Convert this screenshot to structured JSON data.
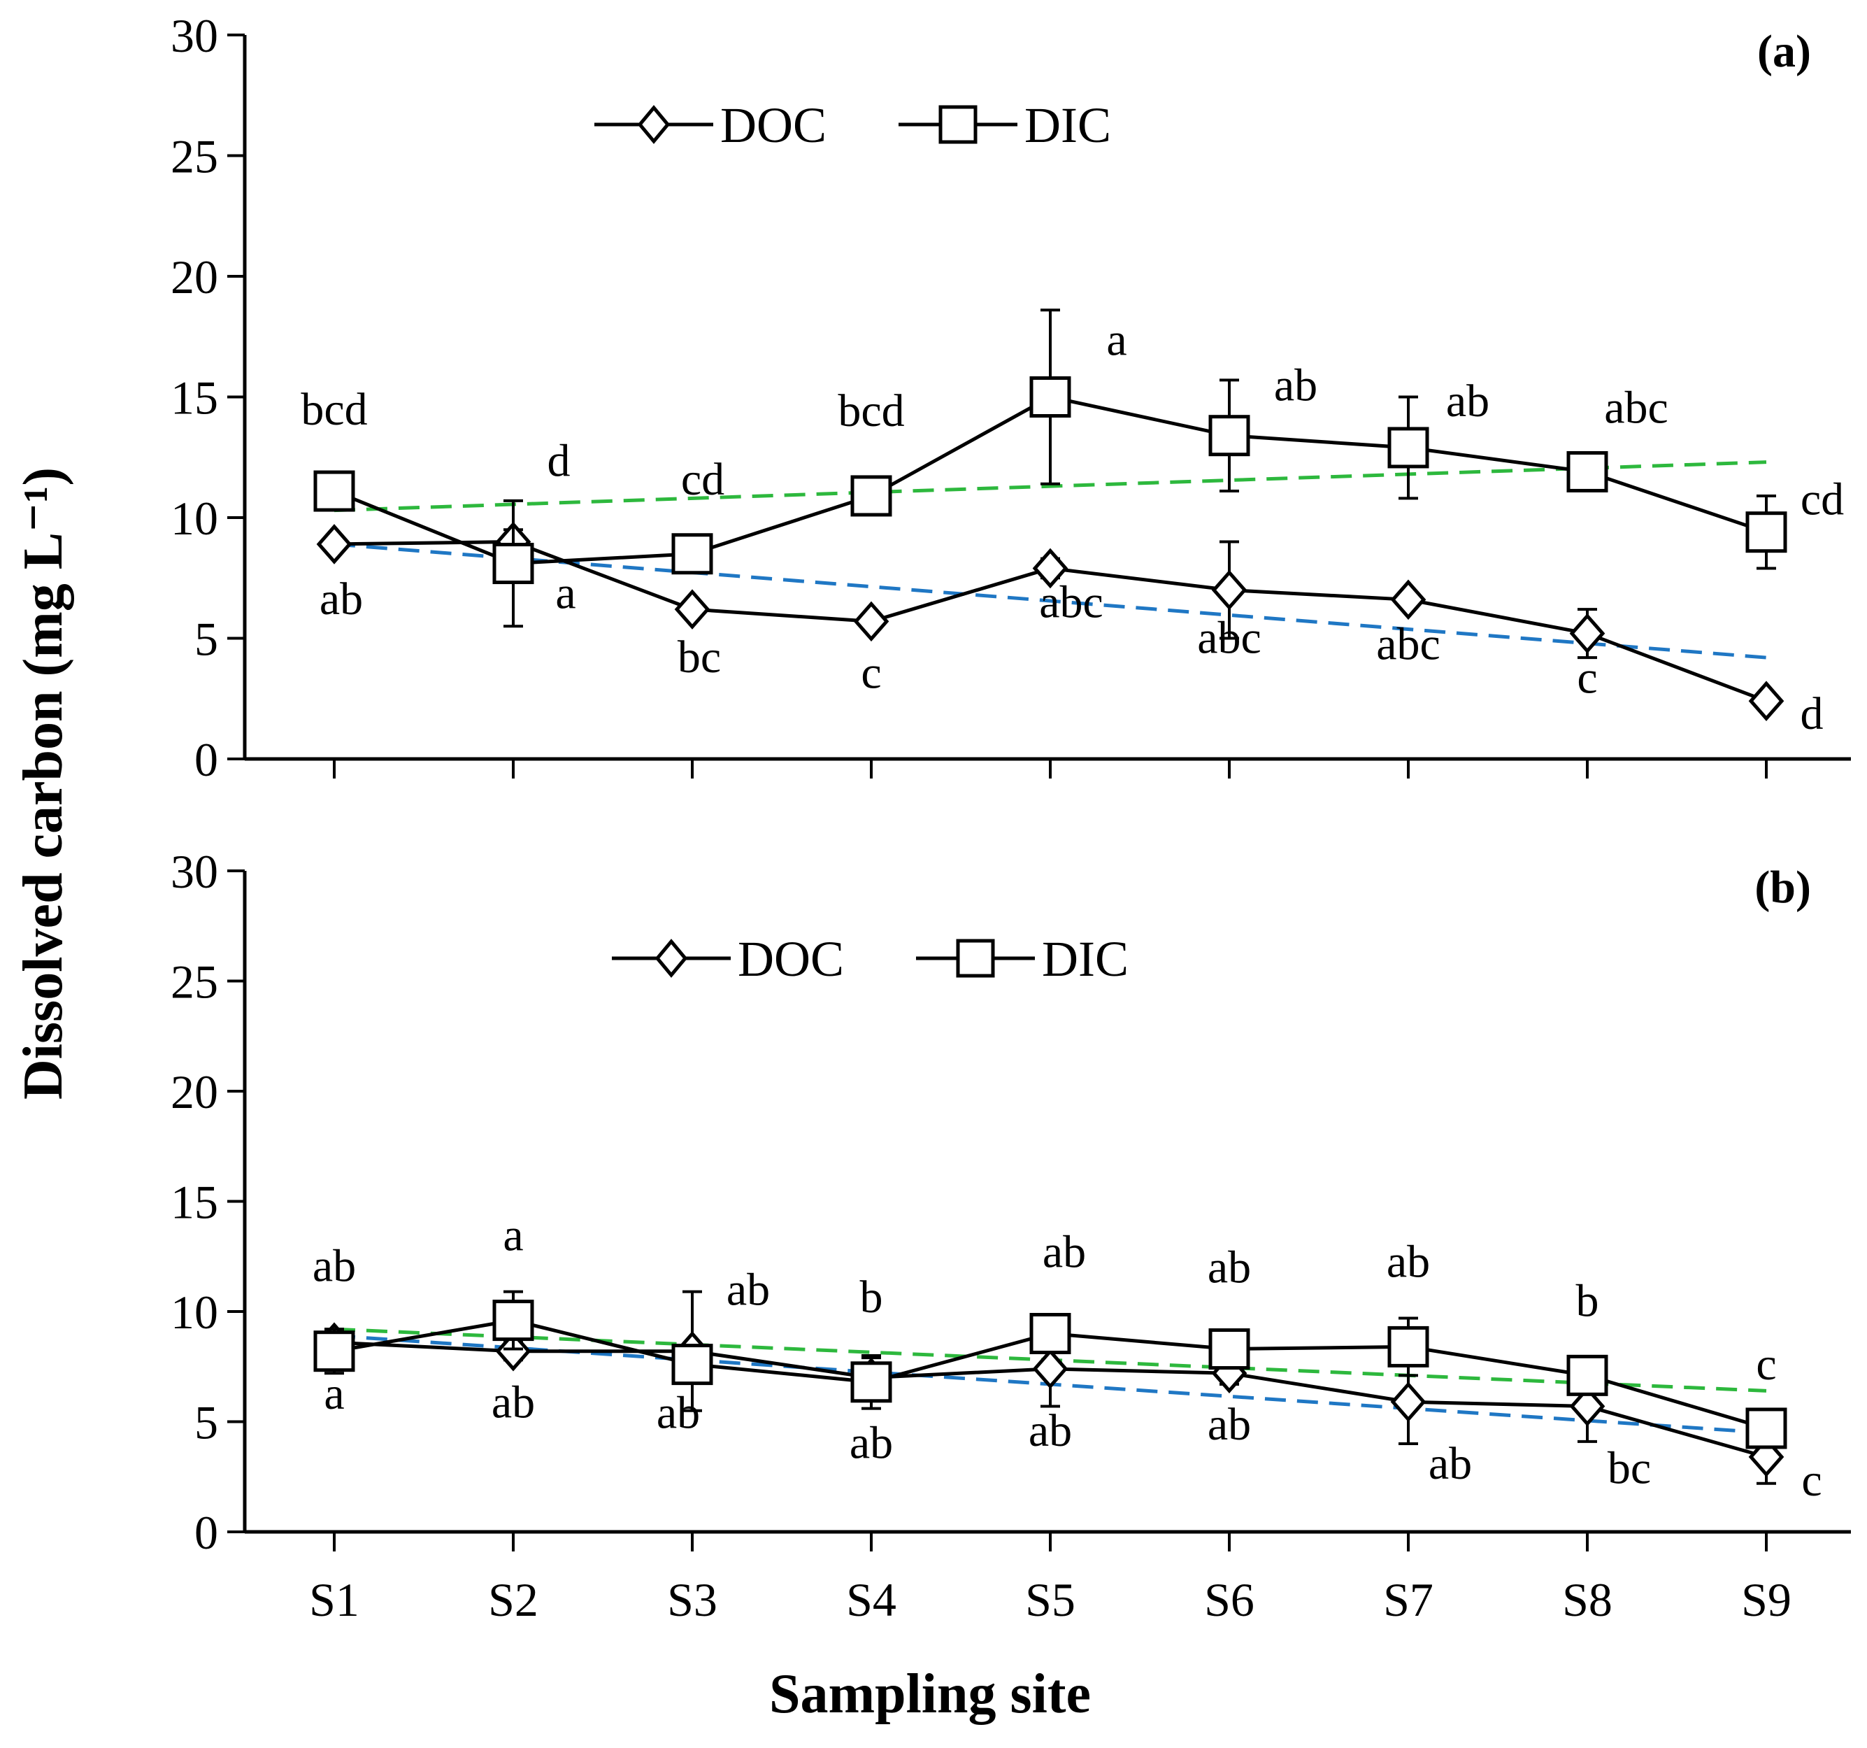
{
  "ylabel": "Dissolved carbon  (mg L⁻¹)",
  "xlabel": "Sampling site",
  "chart_data": [
    {
      "type": "line",
      "panel_label": "(a)",
      "categories": [
        "S1",
        "S2",
        "S3",
        "S4",
        "S5",
        "S6",
        "S7",
        "S8",
        "S9"
      ],
      "ylim": [
        0,
        30
      ],
      "yticks": [
        0,
        5,
        10,
        15,
        20,
        25,
        30
      ],
      "legend": [
        "DOC",
        "DIC"
      ],
      "series": [
        {
          "name": "DOC",
          "marker": "diamond",
          "values": [
            8.9,
            9.0,
            6.2,
            5.7,
            7.9,
            7.0,
            6.6,
            5.2,
            2.4
          ],
          "errors": [
            0.3,
            0.5,
            0.3,
            0.3,
            0.4,
            2.0,
            0.3,
            1.0,
            0.3
          ],
          "letters": [
            "ab",
            "a",
            "bc",
            "c",
            "abc",
            "abc",
            "abc",
            "c",
            "d"
          ],
          "trendline": {
            "color": "#1f77c4",
            "start": 8.9,
            "end": 4.2
          }
        },
        {
          "name": "DIC",
          "marker": "square",
          "values": [
            11.1,
            8.1,
            8.5,
            10.9,
            15.0,
            13.4,
            12.9,
            11.9,
            9.4
          ],
          "errors": [
            0.5,
            2.6,
            0.5,
            0.6,
            3.6,
            2.3,
            2.1,
            0.5,
            1.5
          ],
          "letters": [
            "bcd",
            "d",
            "cd",
            "bcd",
            "a",
            "ab",
            "ab",
            "abc",
            "cd"
          ],
          "trendline": {
            "color": "#2db83d",
            "start": 10.3,
            "end": 12.3
          }
        }
      ]
    },
    {
      "type": "line",
      "panel_label": "(b)",
      "categories": [
        "S1",
        "S2",
        "S3",
        "S4",
        "S5",
        "S6",
        "S7",
        "S8",
        "S9"
      ],
      "ylim": [
        0,
        30
      ],
      "yticks": [
        0,
        5,
        10,
        15,
        20,
        25,
        30
      ],
      "legend": [
        "DOC",
        "DIC"
      ],
      "series": [
        {
          "name": "DOC",
          "marker": "diamond",
          "values": [
            8.6,
            8.2,
            8.2,
            7.0,
            7.4,
            7.2,
            5.9,
            5.7,
            3.4
          ],
          "errors": [
            0.6,
            0.4,
            2.7,
            0.9,
            1.7,
            0.5,
            1.9,
            1.6,
            1.2
          ],
          "letters": [
            "a",
            "ab",
            "ab",
            "ab",
            "ab",
            "ab",
            "ab",
            "bc",
            "c"
          ],
          "trendline": {
            "color": "#1f77c4",
            "start": 8.9,
            "end": 4.5
          }
        },
        {
          "name": "DIC",
          "marker": "square",
          "values": [
            8.2,
            9.6,
            7.6,
            6.8,
            9.0,
            8.3,
            8.4,
            7.1,
            4.7
          ],
          "errors": [
            1.0,
            1.3,
            0.8,
            1.2,
            0.5,
            0.8,
            1.3,
            0.8,
            0.5
          ],
          "letters": [
            "ab",
            "a",
            "ab",
            "b",
            "ab",
            "ab",
            "ab",
            "b",
            "c"
          ],
          "trendline": {
            "color": "#2db83d",
            "start": 9.2,
            "end": 6.4
          }
        }
      ]
    }
  ]
}
